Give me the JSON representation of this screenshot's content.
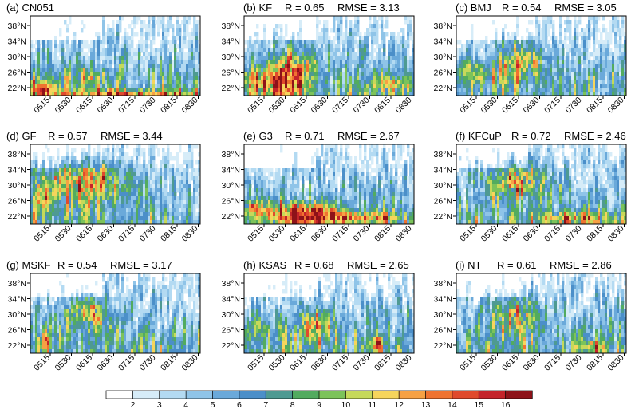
{
  "chart_data": {
    "type": "heatmap",
    "colorbar": {
      "labels": [
        "2",
        "3",
        "4",
        "5",
        "6",
        "7",
        "8",
        "9",
        "10",
        "11",
        "12",
        "13",
        "14",
        "15",
        "16"
      ],
      "colors": [
        "#ffffff",
        "#d6ecf8",
        "#b3daf2",
        "#8fc4e8",
        "#6aa9da",
        "#4b8fc9",
        "#4e9a92",
        "#52ab5f",
        "#7cc35a",
        "#c6d95a",
        "#f6d55c",
        "#f6a144",
        "#ef7330",
        "#e04a2c",
        "#c4232a",
        "#8e1219"
      ]
    },
    "y_ticks": [
      "22°N",
      "26°N",
      "30°N",
      "34°N",
      "38°N"
    ],
    "y_values": [
      22,
      26,
      30,
      34,
      38
    ],
    "x_ticks": [
      "0515",
      "0530",
      "0615",
      "0630",
      "0715",
      "0730",
      "0815",
      "0830"
    ],
    "panels": [
      {
        "label": "(a) CN051",
        "R": null,
        "RMSE": null
      },
      {
        "label": "(b) KF",
        "R": "R = 0.65",
        "RMSE": "RMSE = 3.13"
      },
      {
        "label": "(c) BMJ",
        "R": "R = 0.54",
        "RMSE": "RMSE = 3.05"
      },
      {
        "label": "(d) GF",
        "R": "R = 0.57",
        "RMSE": "RMSE = 3.44"
      },
      {
        "label": "(e) G3",
        "R": "R = 0.71",
        "RMSE": "RMSE = 2.67"
      },
      {
        "label": "(f) KFCuP",
        "R": "R = 0.72",
        "RMSE": "RMSE = 2.46"
      },
      {
        "label": "(g) MSKF",
        "R": "R = 0.54",
        "RMSE": "RMSE = 3.17"
      },
      {
        "label": "(h) KSAS",
        "R": "R = 0.68",
        "RMSE": "RMSE = 2.65"
      },
      {
        "label": "(i) NT",
        "R": "R = 0.61",
        "RMSE": "RMSE = 2.86"
      }
    ]
  }
}
